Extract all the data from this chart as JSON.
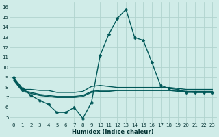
{
  "title": "",
  "xlabel": "Humidex (Indice chaleur)",
  "ylabel": "",
  "xlim": [
    -0.5,
    23.5
  ],
  "ylim": [
    4.5,
    16.5
  ],
  "xticks": [
    0,
    1,
    2,
    3,
    4,
    5,
    6,
    7,
    8,
    9,
    10,
    11,
    12,
    13,
    14,
    15,
    16,
    17,
    18,
    19,
    20,
    21,
    22,
    23
  ],
  "yticks": [
    5,
    6,
    7,
    8,
    9,
    10,
    11,
    12,
    13,
    14,
    15,
    16
  ],
  "bg_color": "#d0ece8",
  "grid_color": "#b0d4ce",
  "line_color": "#005858",
  "line_width": 1.0,
  "marker_size": 2.5,
  "lines": [
    {
      "x": [
        0,
        1,
        2,
        3,
        4,
        5,
        6,
        7,
        8,
        9,
        10,
        11,
        12,
        13,
        14,
        15,
        16,
        17,
        18,
        19,
        20,
        21,
        22,
        23
      ],
      "y": [
        9.0,
        7.9,
        7.2,
        6.7,
        6.3,
        5.5,
        5.5,
        6.0,
        4.9,
        6.5,
        11.2,
        13.3,
        14.9,
        15.8,
        13.0,
        12.7,
        10.5,
        8.2,
        7.9,
        7.8,
        7.5,
        7.5,
        7.5,
        7.5
      ],
      "has_markers": true
    },
    {
      "x": [
        0,
        1,
        2,
        3,
        4,
        5,
        6,
        7,
        8,
        9,
        10,
        11,
        12,
        13,
        14,
        15,
        16,
        17,
        18,
        19,
        20,
        21,
        22,
        23
      ],
      "y": [
        8.9,
        7.8,
        7.8,
        7.7,
        7.7,
        7.5,
        7.5,
        7.5,
        7.6,
        8.1,
        8.2,
        8.1,
        8.0,
        8.0,
        8.0,
        8.0,
        8.0,
        8.0,
        8.0,
        7.9,
        7.8,
        7.8,
        7.8,
        7.8
      ],
      "has_markers": false
    },
    {
      "x": [
        0,
        1,
        2,
        3,
        4,
        5,
        6,
        7,
        8,
        9,
        10,
        11,
        12,
        13,
        14,
        15,
        16,
        17,
        18,
        19,
        20,
        21,
        22,
        23
      ],
      "y": [
        8.8,
        7.7,
        7.5,
        7.3,
        7.2,
        7.1,
        7.1,
        7.1,
        7.2,
        7.6,
        7.7,
        7.7,
        7.7,
        7.7,
        7.7,
        7.7,
        7.7,
        7.7,
        7.7,
        7.7,
        7.6,
        7.6,
        7.6,
        7.6
      ],
      "has_markers": false
    },
    {
      "x": [
        0,
        1,
        2,
        3,
        4,
        5,
        6,
        7,
        8,
        9,
        10,
        11,
        12,
        13,
        14,
        15,
        16,
        17,
        18,
        19,
        20,
        21,
        22,
        23
      ],
      "y": [
        8.7,
        7.6,
        7.4,
        7.2,
        7.1,
        7.0,
        7.0,
        7.0,
        7.1,
        7.5,
        7.6,
        7.6,
        7.7,
        7.7,
        7.7,
        7.7,
        7.7,
        7.7,
        7.7,
        7.6,
        7.6,
        7.5,
        7.5,
        7.5
      ],
      "has_markers": false
    }
  ]
}
